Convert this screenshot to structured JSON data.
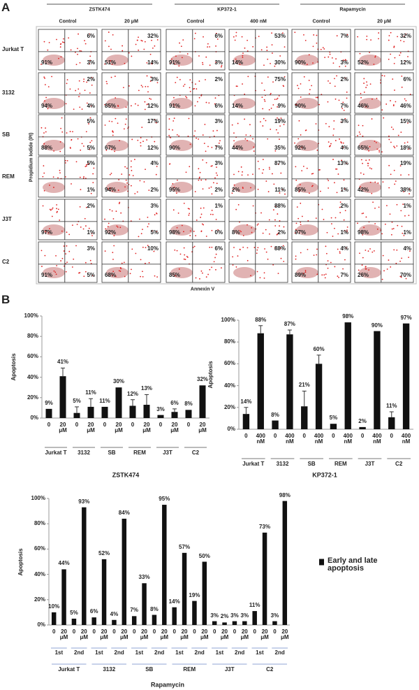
{
  "panel_a": {
    "label": "A",
    "drugs": [
      {
        "name": "ZSTK474",
        "conditions": [
          "Control",
          "20 μM"
        ]
      },
      {
        "name": "KP372-1",
        "conditions": [
          "Control",
          "400 nM"
        ]
      },
      {
        "name": "Rapamycin",
        "conditions": [
          "Control",
          "20 μM"
        ]
      }
    ],
    "cell_lines": [
      "Jurkat T",
      "3132",
      "SB",
      "REM",
      "J3T",
      "C2"
    ],
    "y_label": "Propidium Iodide (PI)",
    "x_label": "Annexin V",
    "plots": [
      [
        {
          "ur": "6%",
          "ll": "91%",
          "lr": "3%"
        },
        {
          "ur": "32%",
          "ll": "51%",
          "lr": "14%"
        },
        {
          "ur": "6%",
          "ll": "91%",
          "lr": "3%"
        },
        {
          "ur": "53%",
          "ll": "14%",
          "lr": "30%"
        },
        {
          "ur": "7%",
          "ll": "90%",
          "lr": "3%"
        },
        {
          "ur": "32%",
          "ll": "52%",
          "lr": "12%"
        }
      ],
      [
        {
          "ur": "2%",
          "ll": "94%",
          "lr": "4%"
        },
        {
          "ur": "3%",
          "ll": "85%",
          "lr": "12%"
        },
        {
          "ur": "2%",
          "ll": "91%",
          "lr": "6%"
        },
        {
          "ur": "75%",
          "ll": "14%",
          "lr": "9%"
        },
        {
          "ur": "2%",
          "ll": "90%",
          "lr": "7%"
        },
        {
          "ur": "6%",
          "ll": "46%",
          "lr": "46%"
        }
      ],
      [
        {
          "ur": "5%",
          "ll": "88%",
          "lr": "5%"
        },
        {
          "ur": "17%",
          "ll": "67%",
          "lr": "12%"
        },
        {
          "ur": "3%",
          "ll": "90%",
          "lr": "7%"
        },
        {
          "ur": "19%",
          "ll": "44%",
          "lr": "35%"
        },
        {
          "ur": "3%",
          "ll": "92%",
          "lr": "4%"
        },
        {
          "ur": "15%",
          "ll": "65%",
          "lr": "18%"
        }
      ],
      [
        {
          "ur": "5%",
          "lr": "1%"
        },
        {
          "ur": "4%",
          "ll": "94%",
          "lr": "2%"
        },
        {
          "ur": "3%",
          "ll": "95%",
          "lr": "2%"
        },
        {
          "ur": "87%",
          "ll": "2%",
          "lr": "11%"
        },
        {
          "ur": "13%",
          "ll": "85%",
          "lr": "1%"
        },
        {
          "ur": "19%",
          "ll": "42%",
          "lr": "38%"
        }
      ],
      [
        {
          "ur": "2%",
          "ll": "97%",
          "lr": "1%"
        },
        {
          "ur": "3%",
          "ll": "92%",
          "lr": "5%"
        },
        {
          "ur": "1%",
          "ll": "98%",
          "lr": "0%"
        },
        {
          "ur": "88%",
          "ll": "8%",
          "lr": "2%"
        },
        {
          "ur": "2%",
          "ll": "97%",
          "lr": "1%"
        },
        {
          "ur": "1%",
          "ll": "98%",
          "lr": "1%"
        }
      ],
      [
        {
          "ur": "3%",
          "ll": "91%",
          "lr": "5%"
        },
        {
          "ur": "10%",
          "ll": "68%"
        },
        {
          "ur": "6%",
          "ll": "85%"
        },
        {
          "ur": "88%"
        },
        {
          "ur": "4%",
          "ll": "89%",
          "lr": "7%"
        },
        {
          "ur": "4%",
          "ll": "26%",
          "lr": "70%"
        }
      ]
    ]
  },
  "panel_b": {
    "label": "B"
  },
  "chart_data": [
    {
      "type": "bar",
      "title": "ZSTK474",
      "ylabel": "Apoptosis",
      "categories": [
        "0",
        "20 μM",
        "0",
        "20 μM",
        "0",
        "20 μM",
        "0",
        "20 μM",
        "0",
        "20 μM",
        "0",
        "20 μM"
      ],
      "groups": [
        "Jurkat T",
        "3132",
        "SB",
        "REM",
        "J3T",
        "C2"
      ],
      "values": [
        9,
        41,
        5,
        11,
        11,
        30,
        12,
        13,
        3,
        6,
        8,
        32
      ],
      "value_labels": [
        "9%",
        "41%",
        "5%",
        "11%",
        "11%",
        "30%",
        "12%",
        "13%",
        "3%",
        "6%",
        "8%",
        "32%"
      ],
      "errors": [
        0,
        8,
        6,
        8,
        0,
        0,
        6,
        10,
        0,
        3,
        0,
        0
      ],
      "color": "#111111",
      "ylim": [
        0,
        100
      ],
      "yticks": [
        {
          "value": 0,
          "label": "0%"
        },
        {
          "value": 20,
          "label": "20%"
        },
        {
          "value": 40,
          "label": "40%"
        },
        {
          "value": 60,
          "label": "60%"
        },
        {
          "value": 80,
          "label": "80%"
        },
        {
          "value": 100,
          "label": "100%"
        }
      ]
    },
    {
      "type": "bar",
      "title": "KP372-1",
      "ylabel": "Apoptosis",
      "categories": [
        "0",
        "400 nM",
        "0",
        "400 nM",
        "0",
        "400 nM",
        "0",
        "400 nM",
        "0",
        "400 nM",
        "0",
        "400 nM"
      ],
      "groups": [
        "Jurkat T",
        "3132",
        "SB",
        "REM",
        "J3T",
        "C2"
      ],
      "values": [
        14,
        88,
        8,
        87,
        21,
        60,
        5,
        98,
        2,
        90,
        11,
        97
      ],
      "value_labels": [
        "14%",
        "88%",
        "8%",
        "87%",
        "21%",
        "60%",
        "5%",
        "98%",
        "2%",
        "90%",
        "11%",
        "97%"
      ],
      "errors": [
        6,
        7,
        0,
        4,
        14,
        8,
        0,
        0,
        0,
        0,
        5,
        0
      ],
      "color": "#111111",
      "ylim": [
        0,
        100
      ],
      "yticks": [
        {
          "value": 0,
          "label": "0%"
        },
        {
          "value": 20,
          "label": "20%"
        },
        {
          "value": 40,
          "label": "40%"
        },
        {
          "value": 60,
          "label": "60%"
        },
        {
          "value": 80,
          "label": "80%"
        },
        {
          "value": 100,
          "label": "100%"
        }
      ]
    },
    {
      "type": "bar",
      "title": "Rapamycin",
      "ylabel": "Apoptosis",
      "categories": [
        "0",
        "20 μM",
        "0",
        "20 μM",
        "0",
        "20 μM",
        "0",
        "20 μM",
        "0",
        "20 μM",
        "0",
        "20 μM",
        "0",
        "20 μM",
        "0",
        "20 μM",
        "0",
        "20 μM",
        "0",
        "20 μM",
        "0",
        "20 μM",
        "0",
        "20 μM"
      ],
      "subgroups": [
        "1st",
        "2nd",
        "1st",
        "2nd",
        "1st",
        "2nd",
        "1st",
        "2nd",
        "1st",
        "2nd",
        "1st",
        "2nd"
      ],
      "groups": [
        "Jurkat T",
        "3132",
        "SB",
        "REM",
        "J3T",
        "C2"
      ],
      "series": [
        {
          "name": "Early and late apoptosis",
          "color": "#111111",
          "values": [
            10,
            44,
            5,
            93,
            6,
            52,
            4,
            84,
            7,
            33,
            8,
            95,
            14,
            57,
            19,
            50,
            3,
            2,
            3,
            3,
            11,
            73,
            3,
            98
          ],
          "value_labels": [
            "10%",
            "44%",
            "5%",
            "93%",
            "6%",
            "52%",
            "4%",
            "84%",
            "7%",
            "33%",
            "8%",
            "95%",
            "14%",
            "57%",
            "19%",
            "50%",
            "3%",
            "2%",
            "3%",
            "3%",
            "11%",
            "73%",
            "3%",
            "98%"
          ]
        }
      ],
      "legend": "right",
      "ylim": [
        0,
        100
      ],
      "yticks": [
        {
          "value": 0,
          "label": "0%"
        },
        {
          "value": 20,
          "label": "20%"
        },
        {
          "value": 40,
          "label": "40%"
        },
        {
          "value": 60,
          "label": "60%"
        },
        {
          "value": 80,
          "label": "80%"
        },
        {
          "value": 100,
          "label": "100%"
        }
      ]
    }
  ]
}
